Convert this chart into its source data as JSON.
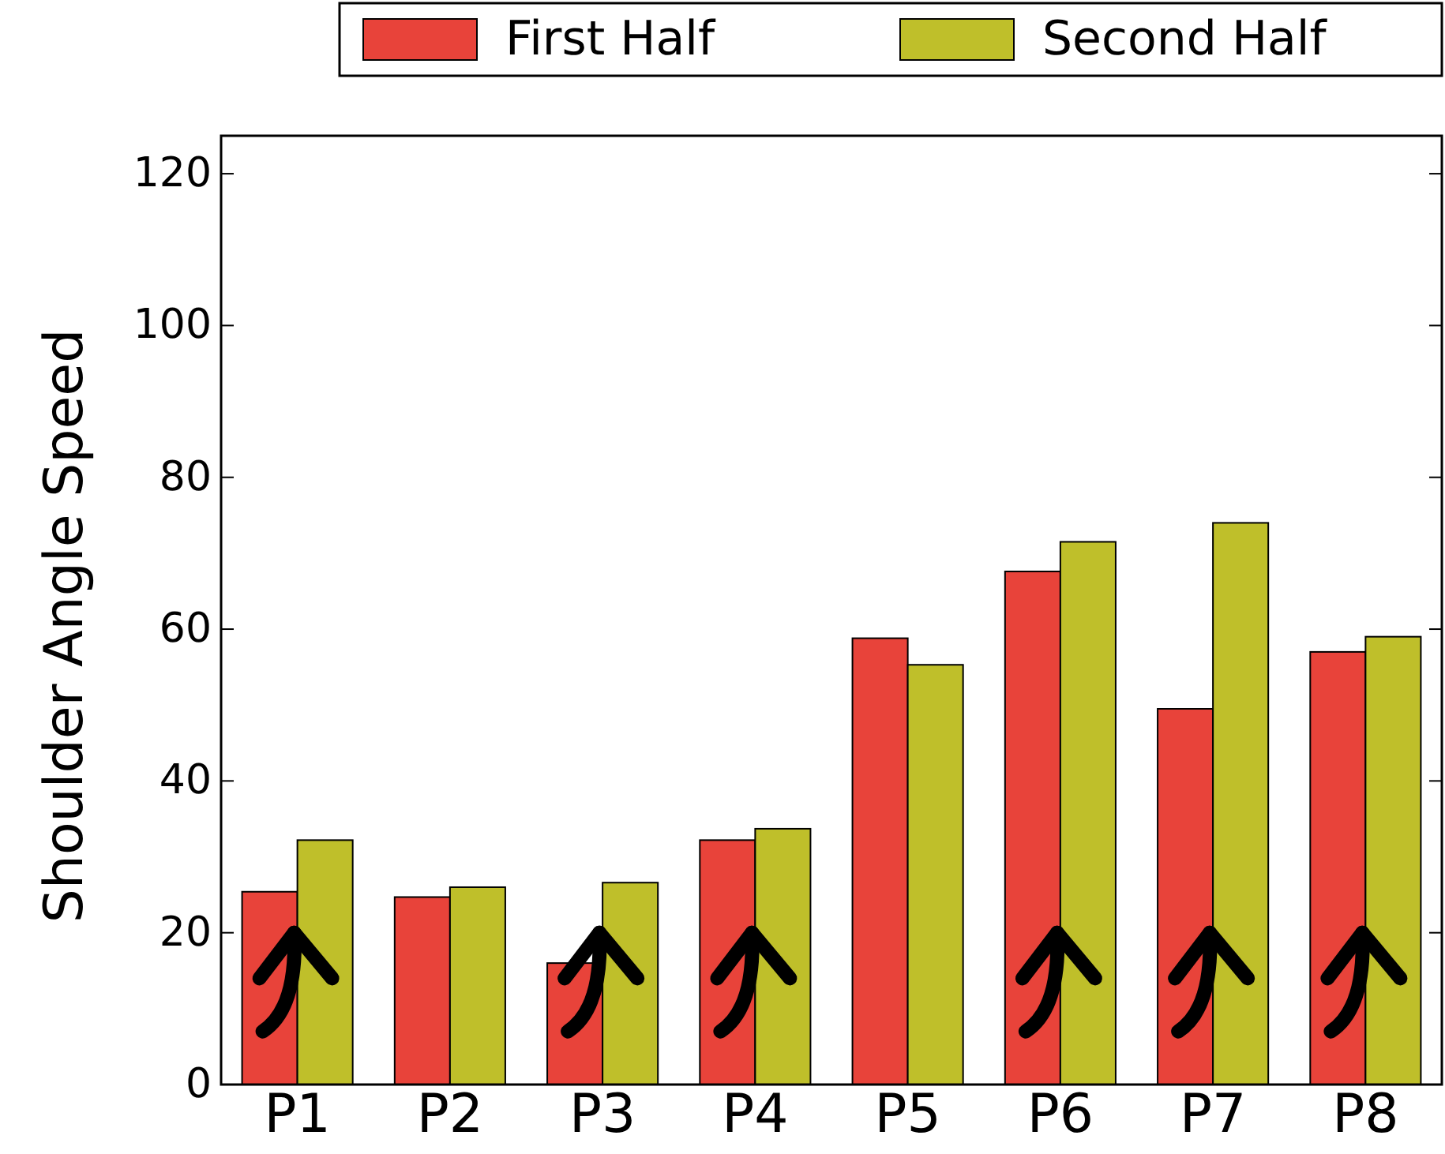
{
  "chart_data": {
    "type": "bar",
    "ylabel": "Shoulder Angle Speed",
    "categories": [
      "P1",
      "P2",
      "P3",
      "P4",
      "P5",
      "P6",
      "P7",
      "P8"
    ],
    "series": [
      {
        "name": "First Half",
        "color": "#e8433a",
        "values": [
          25.4,
          24.7,
          16.0,
          32.2,
          58.8,
          67.6,
          49.5,
          57.0
        ]
      },
      {
        "name": "Second Half",
        "color": "#bfbf2a",
        "values": [
          32.2,
          26.0,
          26.6,
          33.7,
          55.3,
          71.5,
          74.0,
          59.0
        ]
      }
    ],
    "ylim": [
      0,
      125
    ],
    "yticks": [
      0,
      20,
      40,
      60,
      80,
      100,
      120
    ],
    "grid": false,
    "legend": "top right"
  }
}
